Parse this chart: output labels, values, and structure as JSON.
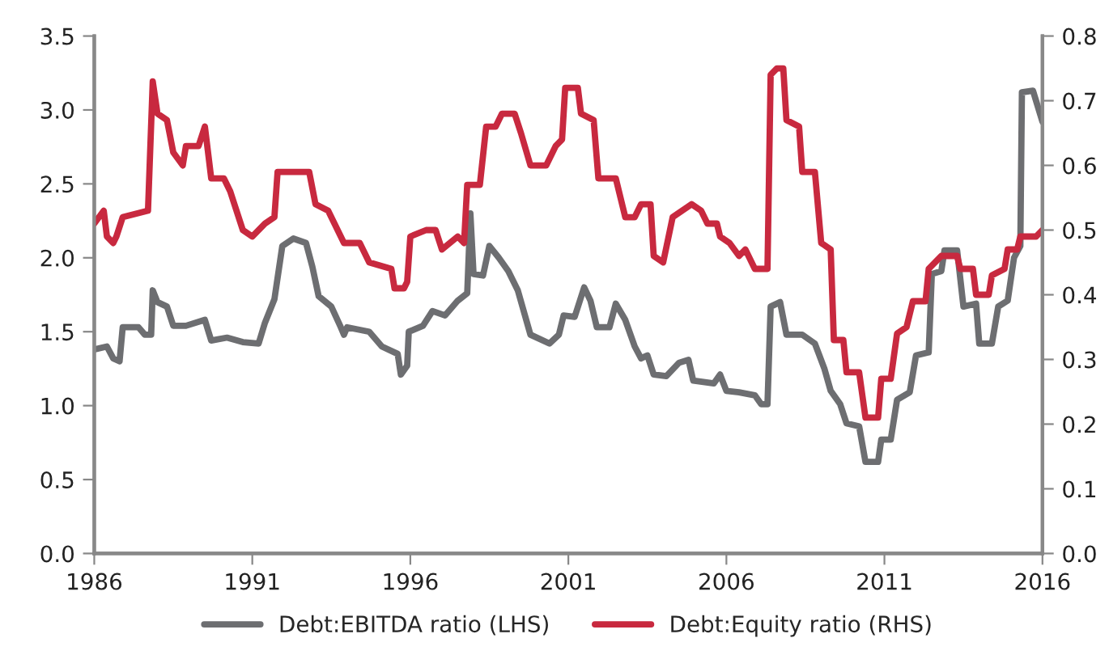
{
  "chart_data": {
    "type": "line",
    "xlim": [
      1986,
      2016
    ],
    "xticks": [
      1986,
      1991,
      1996,
      2001,
      2006,
      2011,
      2016
    ],
    "ylim": [
      0,
      3.5
    ],
    "yticks": [
      {
        "value": 0,
        "label": "0.0"
      },
      0.5,
      {
        "value": 1,
        "label": "1.0"
      },
      1.5,
      {
        "value": 2,
        "label": "2.0"
      },
      2.5,
      {
        "value": 3,
        "label": "3.0"
      },
      3.5
    ],
    "y2lim": [
      0,
      0.8
    ],
    "y2ticks": [
      {
        "value": 0,
        "label": "0.0"
      },
      0.1,
      0.2,
      0.3,
      0.4,
      0.5,
      0.6,
      0.7,
      0.8
    ],
    "grid": false,
    "legend": "bottom",
    "marker": "none",
    "line_style": "solid",
    "series": [
      {
        "name": "Debt:EBITDA ratio (LHS)",
        "color": "#6d6e71",
        "x": [
          1986.0,
          1986.4,
          1986.6,
          1986.8,
          1986.9,
          1987.4,
          1987.6,
          1987.8,
          1987.85,
          1988.0,
          1988.3,
          1988.5,
          1988.9,
          1989.5,
          1989.7,
          1990.2,
          1990.7,
          1991.2,
          1991.4,
          1991.7,
          1991.95,
          1992.3,
          1992.7,
          1992.9,
          1993.1,
          1993.5,
          1993.8,
          1993.9,
          1994.0,
          1994.7,
          1995.1,
          1995.6,
          1995.7,
          1995.9,
          1995.95,
          1996.4,
          1996.7,
          1997.1,
          1997.5,
          1997.8,
          1997.9,
          1998.0,
          1998.3,
          1998.5,
          1998.8,
          1999.1,
          1999.4,
          1999.8,
          2000.4,
          2000.7,
          2000.85,
          2001.2,
          2001.5,
          2001.7,
          2001.9,
          2002.3,
          2002.5,
          2002.8,
          2003.1,
          2003.3,
          2003.5,
          2003.7,
          2004.1,
          2004.5,
          2004.8,
          2004.95,
          2005.6,
          2005.8,
          2006.0,
          2006.4,
          2006.9,
          2007.1,
          2007.3,
          2007.4,
          2007.7,
          2007.9,
          2008.4,
          2008.8,
          2009.1,
          2009.3,
          2009.6,
          2009.8,
          2010.2,
          2010.4,
          2010.8,
          2010.9,
          2011.2,
          2011.4,
          2011.8,
          2012.0,
          2012.4,
          2012.5,
          2012.8,
          2012.9,
          2013.3,
          2013.5,
          2013.9,
          2014.0,
          2014.4,
          2014.6,
          2014.9,
          2015.1,
          2015.3,
          2015.35,
          2015.7,
          2015.8,
          2016.0
        ],
        "values": [
          1.38,
          1.4,
          1.32,
          1.3,
          1.53,
          1.53,
          1.48,
          1.48,
          1.78,
          1.7,
          1.67,
          1.54,
          1.54,
          1.58,
          1.44,
          1.46,
          1.43,
          1.42,
          1.56,
          1.72,
          2.08,
          2.13,
          2.1,
          1.94,
          1.74,
          1.67,
          1.53,
          1.48,
          1.53,
          1.5,
          1.4,
          1.35,
          1.21,
          1.27,
          1.5,
          1.54,
          1.64,
          1.61,
          1.71,
          1.76,
          2.3,
          1.89,
          1.88,
          2.08,
          2.0,
          1.91,
          1.78,
          1.48,
          1.42,
          1.48,
          1.61,
          1.6,
          1.8,
          1.71,
          1.53,
          1.53,
          1.69,
          1.58,
          1.4,
          1.32,
          1.34,
          1.21,
          1.2,
          1.29,
          1.31,
          1.17,
          1.15,
          1.21,
          1.1,
          1.09,
          1.07,
          1.01,
          1.01,
          1.67,
          1.7,
          1.48,
          1.48,
          1.42,
          1.25,
          1.1,
          1.01,
          0.88,
          0.86,
          0.62,
          0.62,
          0.77,
          0.77,
          1.04,
          1.09,
          1.34,
          1.36,
          1.89,
          1.91,
          2.05,
          2.05,
          1.67,
          1.69,
          1.42,
          1.42,
          1.67,
          1.71,
          2.0,
          2.08,
          3.12,
          3.13,
          3.06,
          2.92
        ]
      },
      {
        "name": "Debt:Equity ratio (RHS)",
        "color": "#c8293f",
        "axis": "y2",
        "x": [
          1986.0,
          1986.3,
          1986.4,
          1986.6,
          1986.7,
          1986.9,
          1987.7,
          1987.85,
          1988.0,
          1988.3,
          1988.5,
          1988.8,
          1988.9,
          1989.3,
          1989.5,
          1989.7,
          1990.1,
          1990.3,
          1990.7,
          1991.0,
          1991.4,
          1991.7,
          1991.8,
          1992.8,
          1993.0,
          1993.4,
          1993.6,
          1993.9,
          1994.4,
          1994.7,
          1995.4,
          1995.5,
          1995.8,
          1995.9,
          1996.0,
          1996.5,
          1996.8,
          1997.0,
          1997.5,
          1997.7,
          1997.8,
          1998.2,
          1998.4,
          1998.7,
          1998.9,
          1999.3,
          1999.5,
          1999.8,
          2000.3,
          2000.6,
          2000.8,
          2000.9,
          2001.3,
          2001.4,
          2001.8,
          2001.95,
          2002.5,
          2002.8,
          2003.1,
          2003.3,
          2003.6,
          2003.7,
          2004.0,
          2004.3,
          2004.6,
          2004.9,
          2005.2,
          2005.4,
          2005.7,
          2005.8,
          2006.1,
          2006.4,
          2006.6,
          2006.9,
          2007.3,
          2007.4,
          2007.6,
          2007.8,
          2007.9,
          2008.3,
          2008.4,
          2008.8,
          2009.0,
          2009.3,
          2009.4,
          2009.7,
          2009.8,
          2010.2,
          2010.4,
          2010.8,
          2010.9,
          2011.2,
          2011.4,
          2011.7,
          2011.9,
          2012.3,
          2012.4,
          2012.8,
          2012.9,
          2013.3,
          2013.4,
          2013.8,
          2013.9,
          2014.3,
          2014.4,
          2014.8,
          2014.9,
          2015.2,
          2015.3,
          2015.8,
          2016.0
        ],
        "values": [
          0.51,
          0.53,
          0.49,
          0.48,
          0.49,
          0.52,
          0.53,
          0.73,
          0.68,
          0.67,
          0.62,
          0.6,
          0.63,
          0.63,
          0.66,
          0.58,
          0.58,
          0.56,
          0.5,
          0.49,
          0.51,
          0.52,
          0.59,
          0.59,
          0.54,
          0.53,
          0.51,
          0.48,
          0.48,
          0.45,
          0.44,
          0.41,
          0.41,
          0.42,
          0.49,
          0.5,
          0.5,
          0.47,
          0.49,
          0.48,
          0.57,
          0.57,
          0.66,
          0.66,
          0.68,
          0.68,
          0.65,
          0.6,
          0.6,
          0.63,
          0.64,
          0.72,
          0.72,
          0.68,
          0.67,
          0.58,
          0.58,
          0.52,
          0.52,
          0.54,
          0.54,
          0.46,
          0.45,
          0.52,
          0.53,
          0.54,
          0.53,
          0.51,
          0.51,
          0.49,
          0.48,
          0.46,
          0.47,
          0.44,
          0.44,
          0.74,
          0.75,
          0.75,
          0.67,
          0.66,
          0.59,
          0.59,
          0.48,
          0.47,
          0.33,
          0.33,
          0.28,
          0.28,
          0.21,
          0.21,
          0.27,
          0.27,
          0.34,
          0.35,
          0.39,
          0.39,
          0.44,
          0.46,
          0.46,
          0.46,
          0.44,
          0.44,
          0.4,
          0.4,
          0.43,
          0.44,
          0.47,
          0.47,
          0.49,
          0.49,
          0.5
        ]
      }
    ]
  }
}
